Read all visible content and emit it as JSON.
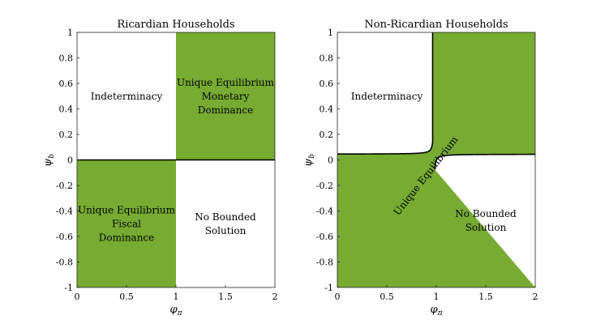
{
  "colors": {
    "shaded": "#78ab32",
    "boundary": "#000000",
    "axis": "#262626"
  },
  "chart_data": [
    {
      "type": "region-map",
      "title": "Ricardian Households",
      "xlabel": "φπ",
      "ylabel": "ψb",
      "xlim": [
        0,
        2
      ],
      "ylim": [
        -1,
        1
      ],
      "x_ticks": [
        "0",
        "0.5",
        "1",
        "1.5",
        "2"
      ],
      "y_ticks": [
        "-1",
        "-0.8",
        "-0.6",
        "-0.4",
        "-0.2",
        "0",
        "0.2",
        "0.4",
        "0.6",
        "0.8",
        "1"
      ],
      "regions": [
        {
          "label": "Indeterminacy",
          "shaded": false,
          "x_range": [
            0,
            1
          ],
          "y_range": [
            0,
            1
          ]
        },
        {
          "label": "Unique Equilibrium\nMonetary\nDominance",
          "shaded": true,
          "x_range": [
            1,
            2
          ],
          "y_range": [
            0,
            1
          ]
        },
        {
          "label": "Unique Equilibrium\nFiscal\nDominance",
          "shaded": true,
          "x_range": [
            0,
            1
          ],
          "y_range": [
            -1,
            0
          ]
        },
        {
          "label": "No Bounded\nSolution",
          "shaded": false,
          "x_range": [
            1,
            2
          ],
          "y_range": [
            -1,
            0
          ]
        }
      ]
    },
    {
      "type": "region-map",
      "title": "Non-Ricardian Households",
      "xlabel": "φπ",
      "ylabel": "ψb",
      "xlim": [
        0,
        2
      ],
      "ylim": [
        -1,
        1
      ],
      "x_ticks": [
        "0",
        "0.5",
        "1",
        "1.5",
        "2"
      ],
      "y_ticks": [
        "-1",
        "-0.8",
        "-0.6",
        "-0.4",
        "-0.2",
        "0",
        "0.2",
        "0.4",
        "0.6",
        "0.8",
        "1"
      ],
      "boundary_params": {
        "x0": 0.975,
        "y0": 0.045,
        "k": 0.0012
      },
      "regions": [
        {
          "label": "Indeterminacy",
          "shaded": false
        },
        {
          "label": "No Bounded\nSolution",
          "shaded": false
        },
        {
          "label": "Unique Equilibrium",
          "shaded": true
        }
      ]
    }
  ]
}
